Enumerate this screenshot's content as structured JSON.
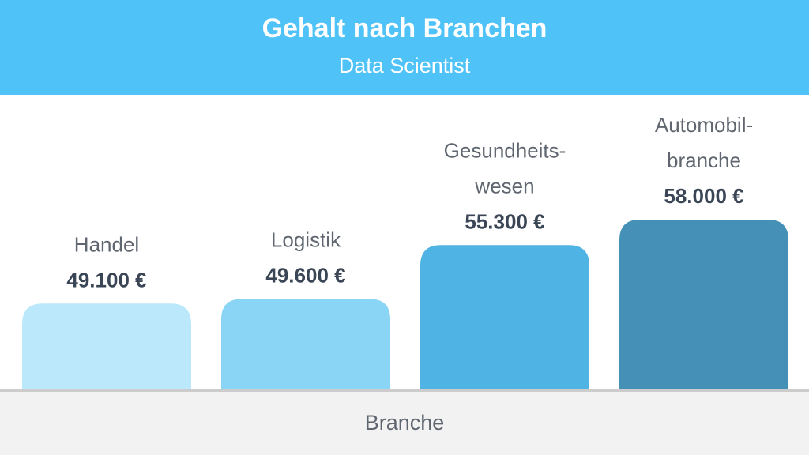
{
  "header": {
    "title": "Gehalt nach Branchen",
    "subtitle": "Data Scientist"
  },
  "chart_data": {
    "type": "bar",
    "title": "Gehalt nach Branchen",
    "subtitle": "Data Scientist",
    "xlabel": "Branche",
    "ylabel": "",
    "categories": [
      [
        "Handel"
      ],
      [
        "Logistik"
      ],
      [
        "Gesundheits-",
        "wesen"
      ],
      [
        "Automobil-",
        "branche"
      ]
    ],
    "values": [
      49100,
      49600,
      55300,
      58000
    ],
    "value_labels": [
      "49.100 €",
      "49.600 €",
      "55.300 €",
      "58.000 €"
    ],
    "colors": [
      "#bbe9fb",
      "#8ad5f6",
      "#4fb3e3",
      "#4590b6"
    ],
    "ylim": [
      0,
      58000
    ],
    "grid": false,
    "legend": "none"
  }
}
